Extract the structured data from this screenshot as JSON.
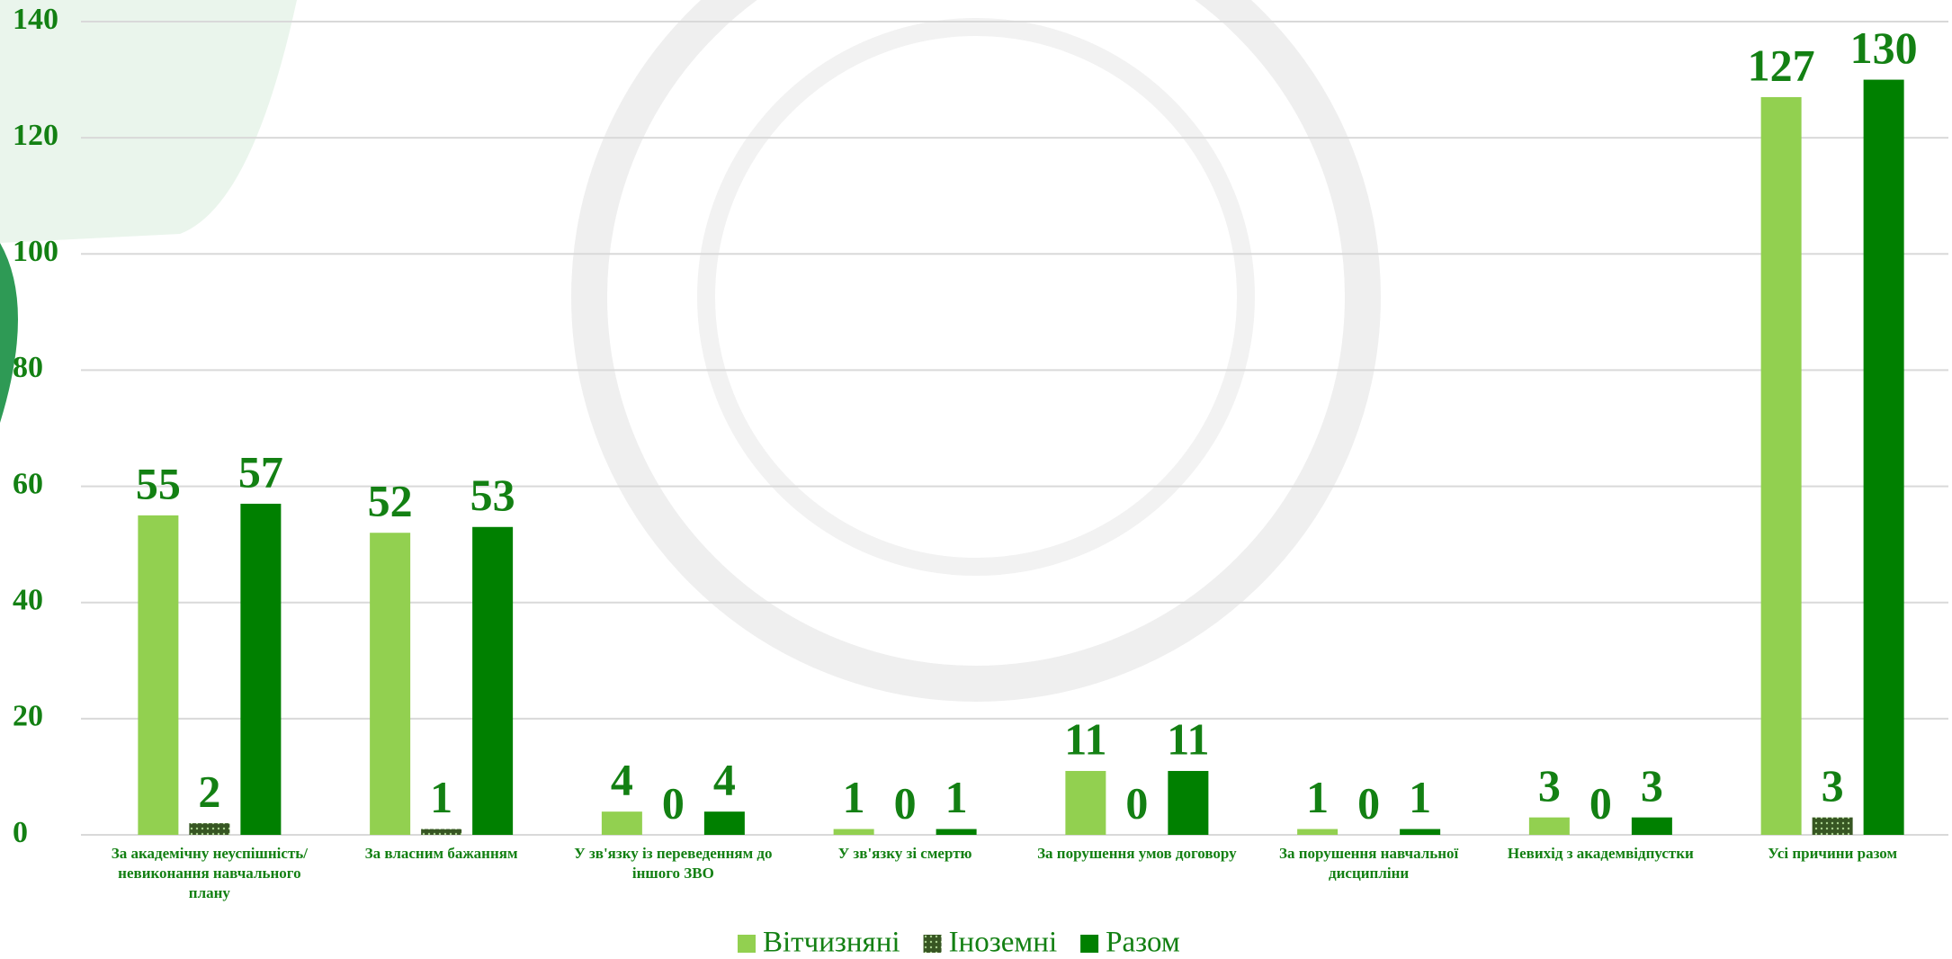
{
  "chart_data": {
    "type": "bar",
    "categories": [
      "За академічну неуспішність/невиконання навчального плану",
      "За власним бажанням",
      "У зв'язку із переведенням до іншого ЗВО",
      "У зв'язку зі смертю",
      "За порушення умов договору",
      "За порушення навчальної дисципліни",
      "Невихід з академвідпустки",
      "Усі причини разом"
    ],
    "series": [
      {
        "name": "Вітчизняні",
        "color": "#92d050",
        "values": [
          55,
          52,
          4,
          1,
          11,
          1,
          3,
          127
        ]
      },
      {
        "name": "Іноземні",
        "color": "#375623",
        "values": [
          2,
          1,
          0,
          0,
          0,
          0,
          0,
          3
        ]
      },
      {
        "name": "Разом",
        "color": "#008000",
        "values": [
          57,
          53,
          4,
          1,
          11,
          1,
          3,
          130
        ]
      }
    ],
    "ylim": [
      0,
      140
    ],
    "yticks": [
      0,
      20,
      40,
      60,
      80,
      100,
      120,
      140
    ],
    "grid": true,
    "legend": "bottom"
  }
}
